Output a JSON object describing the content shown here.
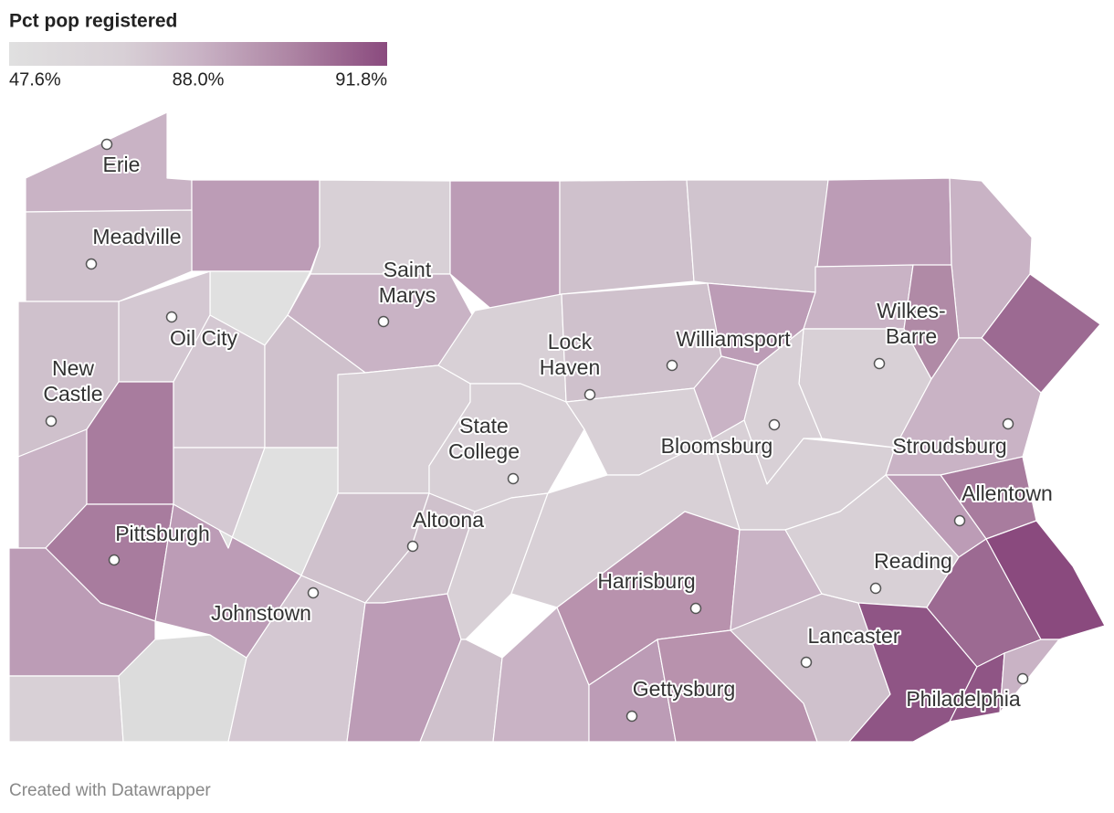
{
  "legend": {
    "title": "Pct pop registered",
    "ticks": [
      {
        "value": 47.6,
        "label": "47.6%"
      },
      {
        "value": 88.0,
        "label": "88.0%"
      },
      {
        "value": 91.8,
        "label": "91.8%"
      }
    ]
  },
  "cities": [
    {
      "lines": [
        "Erie"
      ]
    },
    {
      "lines": [
        "Meadville"
      ]
    },
    {
      "lines": [
        "Saint",
        "Marys"
      ]
    },
    {
      "lines": [
        "Oil City"
      ]
    },
    {
      "lines": [
        "New",
        "Castle"
      ]
    },
    {
      "lines": [
        "Lock",
        "Haven"
      ]
    },
    {
      "lines": [
        "Williamsport"
      ]
    },
    {
      "lines": [
        "Wilkes-",
        "Barre"
      ]
    },
    {
      "lines": [
        "State",
        "College"
      ]
    },
    {
      "lines": [
        "Bloomsburg"
      ]
    },
    {
      "lines": [
        "Stroudsburg"
      ]
    },
    {
      "lines": [
        "Allentown"
      ]
    },
    {
      "lines": [
        "Pittsburgh"
      ]
    },
    {
      "lines": [
        "Altoona"
      ]
    },
    {
      "lines": [
        "Johnstown"
      ]
    },
    {
      "lines": [
        "Harrisburg"
      ]
    },
    {
      "lines": [
        "Reading"
      ]
    },
    {
      "lines": [
        "Lancaster"
      ]
    },
    {
      "lines": [
        "Gettysburg"
      ]
    },
    {
      "lines": [
        "Philadelphia"
      ]
    }
  ],
  "footer": "Created with Datawrapper"
}
